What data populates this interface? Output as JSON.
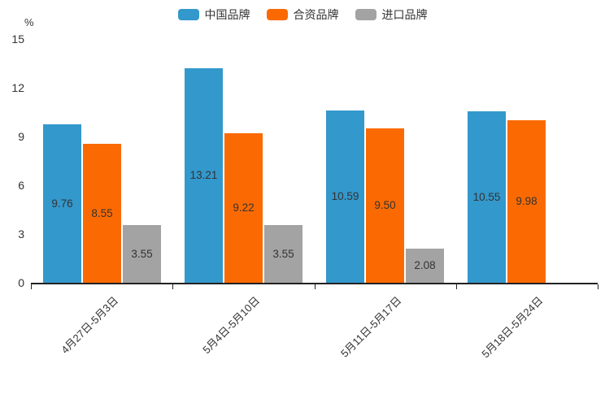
{
  "chart_data": {
    "type": "bar",
    "title": "",
    "ylabel": "%",
    "ylim": [
      0,
      15
    ],
    "yticks": [
      0,
      3,
      6,
      9,
      12,
      15
    ],
    "grid": false,
    "legend_position": "top",
    "axis_color": "#222222",
    "label_color": "#333333",
    "value_label_decimals": 2,
    "categories": [
      "4月27日-5月3日",
      "5月4日-5月10日",
      "5月11日-5月17日",
      "5月18日-5月24日"
    ],
    "series": [
      {
        "name": "中国品牌",
        "color": "#3398CC",
        "values": [
          9.76,
          13.21,
          10.59,
          10.55
        ]
      },
      {
        "name": "合资品牌",
        "color": "#FB6A02",
        "values": [
          8.55,
          9.22,
          9.5,
          9.98
        ]
      },
      {
        "name": "进口品牌",
        "color": "#A3A3A3",
        "values": [
          3.55,
          3.55,
          2.08,
          null
        ]
      }
    ]
  }
}
